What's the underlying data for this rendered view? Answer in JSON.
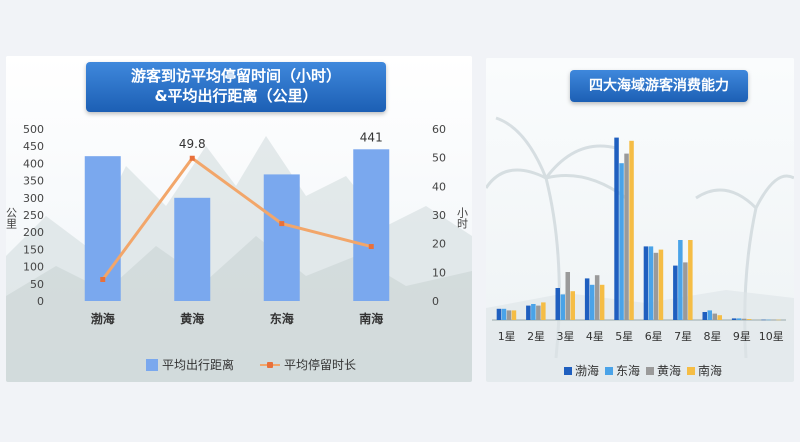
{
  "left_chart": {
    "title_line1": "游客到访平均停留时间（小时）",
    "title_line2": "&平均出行距离（公里）",
    "y_left_label": "公里",
    "y_right_label": "小时",
    "legend_bar": "平均出行距离",
    "legend_line": "平均停留时长",
    "colors": {
      "bar": "#7aa8ee",
      "line": "#f2a66a",
      "line_point": "#e8703a"
    }
  },
  "right_chart": {
    "title": "四大海域游客消费能力",
    "colors": {
      "渤海": "#1f5fbf",
      "东海": "#4aa3e8",
      "黄海": "#9a9a9a",
      "南海": "#f5bd45"
    }
  },
  "chart_data": [
    {
      "type": "bar",
      "categories": [
        "渤海",
        "黄海",
        "东海",
        "南海"
      ],
      "series": [
        {
          "name": "平均出行距离",
          "type": "bar",
          "axis": "left",
          "values": [
            421,
            300,
            368,
            441
          ]
        },
        {
          "name": "平均停留时长",
          "type": "line",
          "axis": "right",
          "values": [
            7.5,
            49.8,
            27,
            19
          ]
        }
      ],
      "data_labels": [
        {
          "category": "黄海",
          "text": "49.8"
        },
        {
          "category": "南海",
          "text": "441"
        }
      ],
      "ylim": [
        0,
        500
      ],
      "y_ticks": [
        "0",
        "50",
        "100",
        "150",
        "200",
        "250",
        "300",
        "350",
        "400",
        "450",
        "500"
      ],
      "y2lim": [
        0,
        60
      ],
      "y2_ticks": [
        "0",
        "10",
        "20",
        "30",
        "40",
        "50",
        "60"
      ],
      "ylabel": "公里",
      "y2label": "小时"
    },
    {
      "type": "bar",
      "categories": [
        "1星",
        "2星",
        "3星",
        "4星",
        "5星",
        "6星",
        "7星",
        "8星",
        "9星",
        "10星"
      ],
      "series": [
        {
          "name": "渤海",
          "values": [
            3.5,
            4.5,
            10,
            13,
            57,
            23,
            17,
            2.5,
            0.5,
            0.1
          ]
        },
        {
          "name": "东海",
          "values": [
            3.5,
            5,
            8,
            11,
            49,
            23,
            25,
            3,
            0.5,
            0.1
          ]
        },
        {
          "name": "黄海",
          "values": [
            3,
            4.5,
            15,
            14,
            52,
            21,
            18,
            2,
            0.4,
            0.1
          ]
        },
        {
          "name": "南海",
          "values": [
            3,
            5.5,
            9,
            11,
            56,
            22,
            25,
            1.5,
            0.3,
            0.1
          ]
        }
      ],
      "ylim": [
        0,
        60
      ]
    }
  ]
}
